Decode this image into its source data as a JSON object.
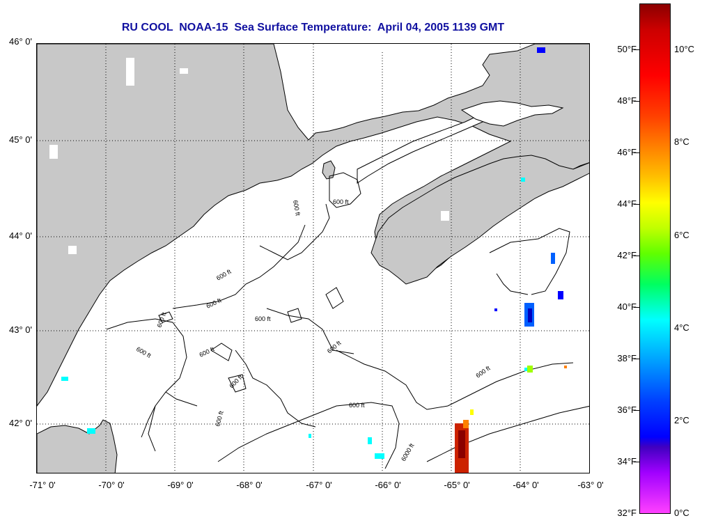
{
  "title": "RU COOL  NOAA-15  Sea Surface Temperature:  April 04, 2005 1139 GMT",
  "map": {
    "latitude_labels": [
      "46° 0'",
      "45° 0'",
      "44° 0'",
      "43° 0'",
      "42° 0'"
    ],
    "longitude_labels": [
      "-71° 0'",
      "-70° 0'",
      "-69° 0'",
      "-68° 0'",
      "-67° 0'",
      "-66° 0'",
      "-65° 0'",
      "-64° 0'",
      "-63° 0'"
    ],
    "contour_labels": [
      "600 ft",
      "600 ft",
      "600 ft",
      "600 ft",
      "600 ft",
      "600 ft",
      "600 ft",
      "600 ft",
      "600 ft",
      "600 ft",
      "600 ft",
      "600 ft",
      "600 ft",
      "6000 ft"
    ],
    "colors": {
      "land": "#c8c8c8",
      "ocean": "#ffffff",
      "coast": "#000000",
      "grid": "#000000"
    }
  },
  "colorbar": {
    "fahrenheit_labels": [
      "50°F",
      "48°F",
      "46°F",
      "44°F",
      "42°F",
      "40°F",
      "38°F",
      "36°F",
      "34°F",
      "32°F"
    ],
    "celsius_labels": [
      "10°C",
      "8°C",
      "6°C",
      "4°C",
      "2°C",
      "0°C"
    ],
    "colors": [
      "#8b0000",
      "#ff0000",
      "#ff8000",
      "#ffff00",
      "#80ff00",
      "#00ffff",
      "#0060ff",
      "#0000ff",
      "#a000ff",
      "#ff40ff"
    ]
  }
}
